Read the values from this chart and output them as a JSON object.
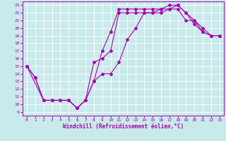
{
  "title": "",
  "xlabel": "Windchill (Refroidissement éolien,°C)",
  "ylabel": "",
  "bg_color": "#c8eaea",
  "line_color": "#aa00aa",
  "grid_color": "#ffffff",
  "xlim": [
    -0.5,
    23.5
  ],
  "ylim": [
    8.5,
    23.5
  ],
  "xticks": [
    0,
    1,
    2,
    3,
    4,
    5,
    6,
    7,
    8,
    9,
    10,
    11,
    12,
    13,
    14,
    15,
    16,
    17,
    18,
    19,
    20,
    21,
    22,
    23
  ],
  "yticks": [
    9,
    10,
    11,
    12,
    13,
    14,
    15,
    16,
    17,
    18,
    19,
    20,
    21,
    22,
    23
  ],
  "line1_x": [
    0,
    1,
    2,
    3,
    4,
    5,
    6,
    7,
    8,
    9,
    10,
    11,
    12,
    13,
    14,
    15,
    16,
    17,
    18,
    19,
    20,
    21,
    22,
    23
  ],
  "line1_y": [
    15,
    13.5,
    10.5,
    10.5,
    10.5,
    10.5,
    9.5,
    10.5,
    13,
    17,
    19.5,
    22.5,
    22.5,
    22.5,
    22.5,
    22.5,
    22.5,
    23,
    23,
    22,
    20.5,
    19.5,
    19,
    19
  ],
  "line2_x": [
    0,
    1,
    2,
    3,
    4,
    5,
    6,
    7,
    8,
    9,
    10,
    11,
    12,
    13,
    14,
    15,
    16,
    17,
    18,
    19,
    20,
    21,
    22,
    23
  ],
  "line2_y": [
    15,
    13.5,
    10.5,
    10.5,
    10.5,
    10.5,
    9.5,
    10.5,
    15.5,
    16,
    17,
    22,
    22,
    22,
    22,
    22,
    22.5,
    22.5,
    22.5,
    21,
    21,
    20,
    19,
    19
  ],
  "line3_x": [
    0,
    2,
    3,
    4,
    5,
    6,
    7,
    8,
    9,
    10,
    11,
    12,
    13,
    14,
    15,
    16,
    17,
    18,
    19,
    20,
    21,
    22,
    23
  ],
  "line3_y": [
    15,
    10.5,
    10.5,
    10.5,
    10.5,
    9.5,
    10.5,
    13,
    14,
    14,
    15.5,
    18.5,
    20,
    22,
    22,
    22,
    22.5,
    23,
    22,
    21,
    19.5,
    19,
    19
  ],
  "tick_fontsize": 4.5,
  "xlabel_fontsize": 5.5,
  "marker_size": 2.0,
  "line_width": 0.8
}
